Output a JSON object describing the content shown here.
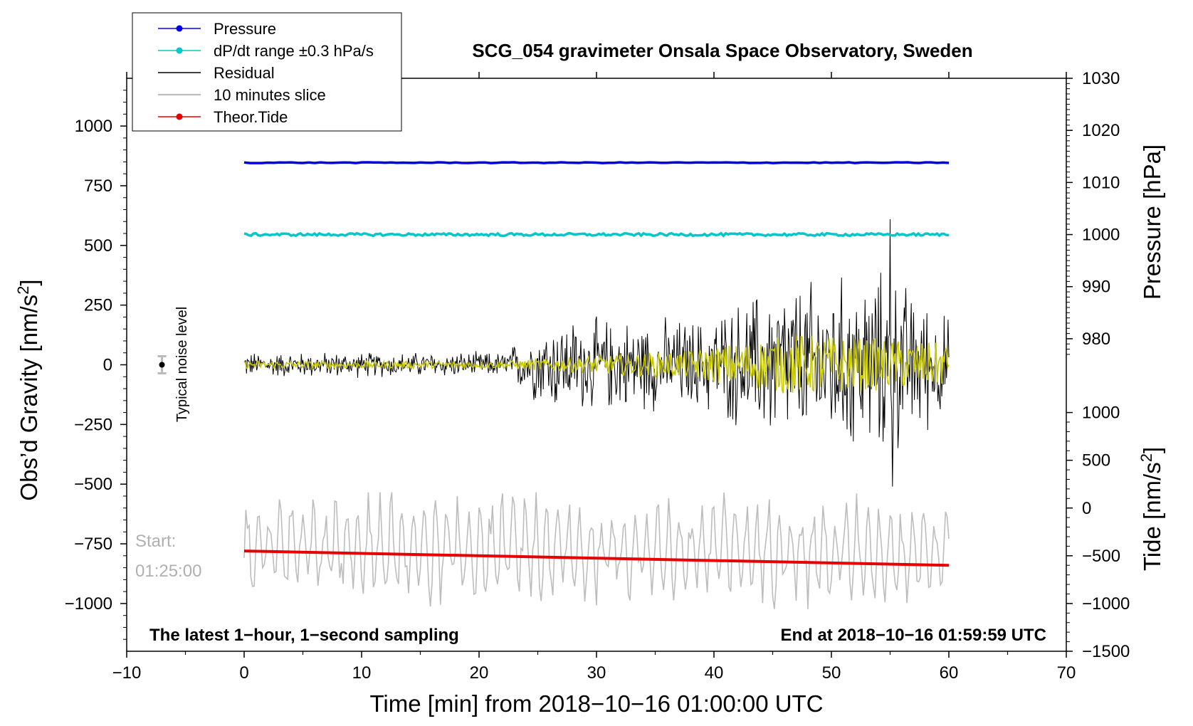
{
  "chart_data": {
    "type": "line",
    "title": "SCG_054 gravimeter Onsala Space Observatory, Sweden",
    "xlabel": "Time [min] from 2018−10−16 01:00:00 UTC",
    "ylabel_left_main": "Obs’d Gravity [nm/s",
    "ylabel_left_sup": "2",
    "ylabel_left_end": "]",
    "ylabel_right_top": "Pressure [hPa]",
    "ylabel_right_bottom_main": "Tide [nm/s",
    "ylabel_right_bottom_sup": "2",
    "ylabel_right_bottom_end": "]",
    "xlim": [
      -10,
      70
    ],
    "ylim_left": [
      -1200,
      1200
    ],
    "ylim_pressure": [
      920,
      1030
    ],
    "ylim_tide": [
      -1500,
      4500
    ],
    "x_ticks": [
      "−10",
      "0",
      "10",
      "20",
      "30",
      "40",
      "50",
      "60",
      "70"
    ],
    "x_tick_values": [
      -10,
      0,
      10,
      20,
      30,
      40,
      50,
      60,
      70
    ],
    "left_ticks": [
      "1000",
      "750",
      "500",
      "250",
      "0",
      "−250",
      "−500",
      "−750",
      "−1000"
    ],
    "left_tick_values": [
      1000,
      750,
      500,
      250,
      0,
      -250,
      -500,
      -750,
      -1000
    ],
    "pressure_ticks": [
      "1030",
      "1020",
      "1010",
      "1000",
      "990",
      "980"
    ],
    "pressure_tick_values": [
      1030,
      1020,
      1010,
      1000,
      990,
      980
    ],
    "tide_ticks": [
      "1000",
      "500",
      "0",
      "−500",
      "−1000",
      "−1500"
    ],
    "tide_tick_values": [
      1000,
      500,
      0,
      -500,
      -1000,
      -1500
    ],
    "legend": [
      {
        "name": "Pressure",
        "color": "#0000e6",
        "marker": true
      },
      {
        "name": "dP/dt range ±0.3 hPa/s",
        "color": "#00c8c8",
        "marker": true
      },
      {
        "name": "Residual",
        "color": "#000000",
        "marker": false
      },
      {
        "name": "10 minutes slice",
        "color": "#bdbdbd",
        "marker": false
      },
      {
        "name": "Theor.Tide",
        "color": "#e60000",
        "marker": true
      }
    ],
    "series": [
      {
        "name": "Pressure",
        "axis": "pressure",
        "x_range": [
          0,
          60
        ],
        "values_at_endpoints": [
          1013.8,
          1013.8
        ]
      },
      {
        "name": "dP/dt range ±0.3 hPa/s",
        "axis": "pressure",
        "x_range": [
          0,
          60
        ],
        "values_at_endpoints": [
          1000,
          1000
        ]
      },
      {
        "name": "Residual",
        "axis": "left",
        "x_range": [
          0,
          60
        ],
        "amplitude_profile": [
          [
            0,
            60
          ],
          [
            22,
            60
          ],
          [
            26,
            220
          ],
          [
            39,
            220
          ],
          [
            45,
            380
          ],
          [
            55,
            440
          ],
          [
            60,
            230
          ]
        ],
        "peak_max": 610,
        "peak_min": -510
      },
      {
        "name": "10 minutes slice",
        "axis": "left",
        "x_range": [
          0,
          60
        ],
        "baseline": -780,
        "amplitude": 200,
        "max": -440,
        "min": -1030
      },
      {
        "name": "Theor.Tide",
        "axis": "tide",
        "x_range": [
          0,
          60
        ],
        "values_at_endpoints": [
          -450,
          -600
        ]
      },
      {
        "name": "Residual (smoothed)",
        "axis": "left",
        "color": "#c8c800",
        "x_range": [
          0,
          60
        ],
        "amplitude_profile": [
          [
            0,
            15
          ],
          [
            22,
            15
          ],
          [
            38,
            60
          ],
          [
            47,
            130
          ],
          [
            60,
            90
          ]
        ]
      }
    ],
    "annotations": {
      "noise_label": "Typical noise level",
      "noise_x": -7,
      "noise_y": 0,
      "start_label_1": "Start:",
      "start_label_2": "01:25:00",
      "bottom_left": "The latest 1−hour, 1−second sampling",
      "bottom_right": "End at 2018−10−16 01:59:59 UTC"
    }
  }
}
